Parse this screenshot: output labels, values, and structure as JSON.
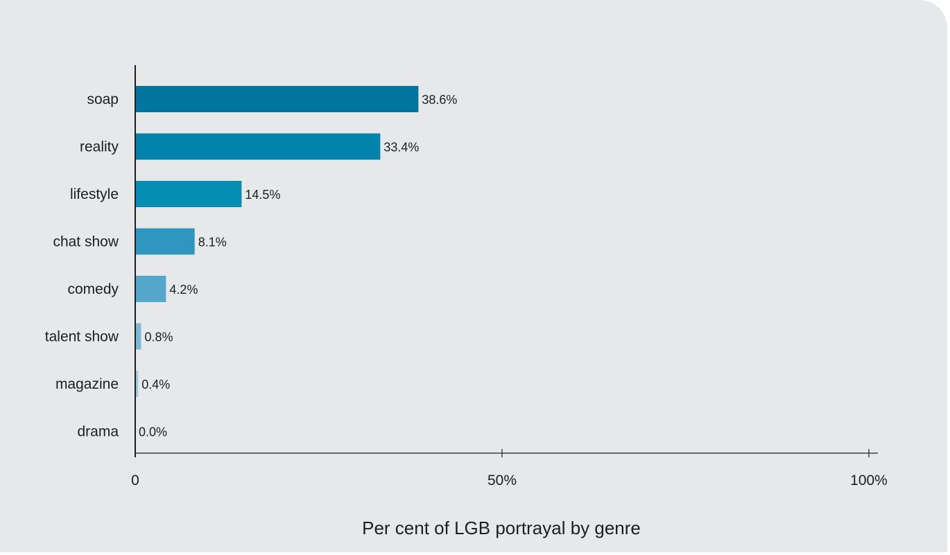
{
  "chart_data": {
    "type": "bar",
    "orientation": "horizontal",
    "categories": [
      "soap",
      "reality",
      "lifestyle",
      "chat show",
      "comedy",
      "talent show",
      "magazine",
      "drama"
    ],
    "values": [
      38.6,
      33.4,
      14.5,
      8.1,
      4.2,
      0.8,
      0.4,
      0.0
    ],
    "value_labels": [
      "38.6%",
      "33.4%",
      "14.5%",
      "8.1%",
      "4.2%",
      "0.8%",
      "0.4%",
      "0.0%"
    ],
    "bar_colors": [
      "#00759f",
      "#0183ab",
      "#048eb4",
      "#2f97bf",
      "#54a7c9",
      "#7cb9d7",
      "#9cc9e1",
      "#b8d8ea"
    ],
    "xlim": [
      0,
      100
    ],
    "xticks": [
      0,
      50,
      100
    ],
    "xtick_labels": [
      "0",
      "50%",
      "100%"
    ],
    "xlabel": "Per cent of LGB portrayal by genre",
    "ylabel": "",
    "title": "",
    "grid": false,
    "legend": "none"
  }
}
